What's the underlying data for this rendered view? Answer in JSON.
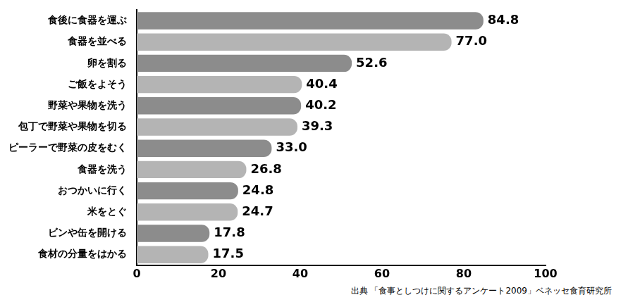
{
  "chart_data": {
    "type": "bar",
    "orientation": "horizontal",
    "categories": [
      "食後に食器を運ぶ",
      "食器を並べる",
      "卵を割る",
      "ご飯をよそう",
      "野菜や果物を洗う",
      "包丁で野菜や果物を切る",
      "ピーラーで野菜の皮をむく",
      "食器を洗う",
      "おつかいに行く",
      "米をとぐ",
      "ビンや缶を開ける",
      "食材の分量をはかる"
    ],
    "values": [
      84.8,
      77.0,
      52.6,
      40.4,
      40.2,
      39.3,
      33.0,
      26.8,
      24.8,
      24.7,
      17.8,
      17.5
    ],
    "value_labels": [
      "84.8",
      "77.0",
      "52.6",
      "40.4",
      "40.2",
      "39.3",
      "33.0",
      "26.8",
      "24.8",
      "24.7",
      "17.8",
      "17.5"
    ],
    "colors": [
      "#8c8c8c",
      "#b4b4b4",
      "#8c8c8c",
      "#b4b4b4",
      "#8c8c8c",
      "#b4b4b4",
      "#8c8c8c",
      "#b4b4b4",
      "#8c8c8c",
      "#b4b4b4",
      "#8c8c8c",
      "#b4b4b4"
    ],
    "xlim": [
      0,
      100
    ],
    "xticks": [
      0,
      20,
      40,
      60,
      80,
      100
    ],
    "grid": false,
    "data_labels": true,
    "source": "出典 「食事としつけに関するアンケート2009」ベネッセ食育研究所"
  }
}
